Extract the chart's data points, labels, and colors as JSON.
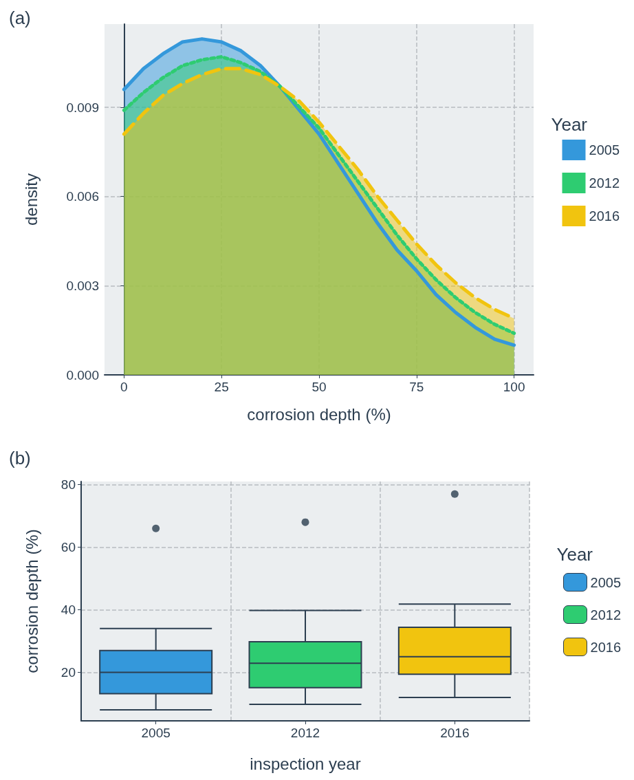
{
  "chart_data": [
    {
      "type": "area",
      "title": "(a)",
      "xlabel": "corrosion depth (%)",
      "ylabel": "density",
      "legend_title": "Year",
      "legend": "right",
      "grid": true,
      "marker": "none",
      "xlim": [
        -5,
        105
      ],
      "xticks": [
        0,
        25,
        50,
        75,
        100
      ],
      "ylim": [
        0,
        0.0118
      ],
      "yticks": [
        {
          "value": 0,
          "label": "0.000"
        },
        0.003,
        0.006,
        0.009
      ],
      "x": [
        0,
        5,
        10,
        15,
        20,
        25,
        30,
        35,
        40,
        45,
        50,
        55,
        60,
        65,
        70,
        75,
        80,
        85,
        90,
        95,
        100
      ],
      "series": [
        {
          "name": "2005",
          "color": "#3498db",
          "line_style": "solid",
          "values": [
            0.0096,
            0.0103,
            0.0108,
            0.0112,
            0.0113,
            0.0112,
            0.0109,
            0.0104,
            0.0097,
            0.0089,
            0.0081,
            0.0071,
            0.0061,
            0.0051,
            0.0042,
            0.0035,
            0.0027,
            0.0021,
            0.0016,
            0.0012,
            0.001
          ]
        },
        {
          "name": "2012",
          "color": "#2ecc71",
          "line_style": "dotted",
          "values": [
            0.0089,
            0.0095,
            0.01,
            0.0104,
            0.0106,
            0.0107,
            0.0105,
            0.0102,
            0.0097,
            0.009,
            0.0083,
            0.0074,
            0.0065,
            0.0056,
            0.0047,
            0.0039,
            0.0032,
            0.0026,
            0.0021,
            0.0017,
            0.0014
          ]
        },
        {
          "name": "2016",
          "color": "#f1c40f",
          "line_style": "dashed",
          "values": [
            0.0081,
            0.0088,
            0.0094,
            0.0098,
            0.0101,
            0.0103,
            0.0103,
            0.0101,
            0.0097,
            0.0092,
            0.0085,
            0.0077,
            0.0069,
            0.006,
            0.0052,
            0.0044,
            0.0037,
            0.0031,
            0.0026,
            0.0022,
            0.0019
          ]
        }
      ]
    },
    {
      "type": "box",
      "title": "(b)",
      "xlabel": "inspection year",
      "ylabel": "corrosion depth (%)",
      "legend_title": "Year",
      "legend": "right",
      "grid": true,
      "categories": [
        "2005",
        "2012",
        "2016"
      ],
      "ylim": [
        4.5,
        81
      ],
      "yticks": [
        20,
        40,
        60,
        80
      ],
      "series": [
        {
          "name": "2005",
          "color": "#3498db",
          "boxes": [
            {
              "low": 8,
              "q1": 13.2,
              "median": 20,
              "q3": 27,
              "high": 34,
              "outliers": [
                66
              ]
            },
            null,
            null
          ]
        },
        {
          "name": "2012",
          "color": "#2ecc71",
          "boxes": [
            null,
            {
              "low": 9.8,
              "q1": 15.1,
              "median": 22.9,
              "q3": 29.8,
              "high": 39.8,
              "outliers": [
                68
              ]
            },
            null
          ]
        },
        {
          "name": "2016",
          "color": "#f1c40f",
          "boxes": [
            null,
            null,
            {
              "low": 12,
              "q1": 19.4,
              "median": 25,
              "q3": 34.4,
              "high": 41.8,
              "outliers": [
                77
              ]
            }
          ]
        }
      ]
    }
  ]
}
